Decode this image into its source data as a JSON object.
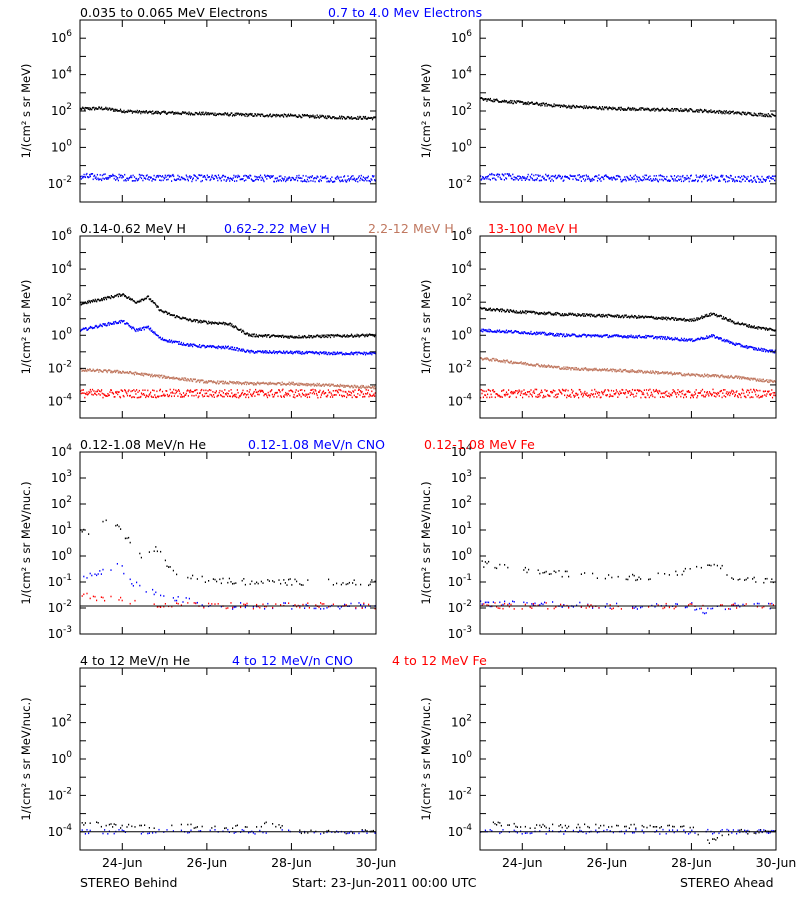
{
  "colors": {
    "black": "#000000",
    "blue": "#0000ff",
    "tan": "#c07860",
    "red": "#ff0000"
  },
  "rows": [
    {
      "titles": [
        {
          "text": "0.035 to 0.065 MeV Electrons",
          "color": "#000000"
        },
        {
          "text": "0.7 to 4.0 Mev Electrons",
          "color": "#0000ff"
        }
      ]
    },
    {
      "titles": [
        {
          "text": "0.14-0.62 MeV H",
          "color": "#000000"
        },
        {
          "text": "0.62-2.22 MeV H",
          "color": "#0000ff"
        },
        {
          "text": "2.2-12 MeV H",
          "color": "#c07860"
        },
        {
          "text": "13-100 MeV H",
          "color": "#ff0000"
        }
      ]
    },
    {
      "titles": [
        {
          "text": "0.12-1.08 MeV/n He",
          "color": "#000000"
        },
        {
          "text": "0.12-1.08 MeV/n CNO",
          "color": "#0000ff"
        },
        {
          "text": "0.12-1.08 MeV Fe",
          "color": "#ff0000"
        }
      ]
    },
    {
      "titles": [
        {
          "text": "4 to 12 MeV/n He",
          "color": "#000000"
        },
        {
          "text": "4 to 12 MeV/n CNO",
          "color": "#0000ff"
        },
        {
          "text": "4 to 12 MeV Fe",
          "color": "#ff0000"
        }
      ]
    }
  ],
  "footer": {
    "left": "STEREO Behind",
    "center": "Start: 23-Jun-2011 00:00 UTC",
    "right": "STEREO Ahead"
  },
  "chart_data": [
    {
      "type": "scatter",
      "panel": "electrons-behind",
      "ylabel": "1/(cm² s sr MeV)",
      "yscale": "log",
      "ylim": [
        0.001,
        10000000
      ],
      "ytick_labels": [
        "10^-2",
        "10^0",
        "10^2",
        "10^4",
        "10^6"
      ],
      "xlim": [
        0,
        7
      ],
      "series": [
        {
          "name": "0.035 to 0.065 MeV Electrons",
          "color": "#000000",
          "x": [
            0,
            0.5,
            1,
            1.5,
            2,
            3,
            4,
            5,
            6,
            7
          ],
          "y": [
            130,
            140,
            100,
            85,
            80,
            70,
            60,
            55,
            45,
            40
          ]
        },
        {
          "name": "0.7 to 4.0 Mev Electrons",
          "color": "#0000ff",
          "x": [
            0,
            1,
            2,
            3,
            4,
            5,
            6,
            7
          ],
          "y": [
            0.025,
            0.022,
            0.021,
            0.02,
            0.02,
            0.02,
            0.019,
            0.019
          ]
        }
      ]
    },
    {
      "type": "scatter",
      "panel": "electrons-ahead",
      "ylabel": "1/(cm² s sr MeV)",
      "yscale": "log",
      "ylim": [
        0.001,
        10000000
      ],
      "ytick_labels": [
        "10^-2",
        "10^0",
        "10^2",
        "10^4",
        "10^6"
      ],
      "xlim": [
        0,
        7
      ],
      "series": [
        {
          "name": "0.035 to 0.065 MeV Electrons",
          "color": "#000000",
          "x": [
            0,
            1,
            2,
            3,
            4,
            5,
            6,
            7
          ],
          "y": [
            450,
            280,
            180,
            140,
            120,
            110,
            80,
            55
          ]
        },
        {
          "name": "0.7 to 4.0 Mev Electrons",
          "color": "#0000ff",
          "x": [
            0,
            1,
            2,
            3,
            4,
            5,
            6,
            7
          ],
          "y": [
            0.025,
            0.022,
            0.021,
            0.02,
            0.02,
            0.02,
            0.019,
            0.018
          ]
        }
      ]
    },
    {
      "type": "scatter",
      "panel": "protons-behind",
      "ylabel": "1/(cm² s sr MeV)",
      "yscale": "log",
      "ylim": [
        1e-05,
        1000000
      ],
      "ytick_labels": [
        "10^-4",
        "10^-2",
        "10^0",
        "10^2",
        "10^4",
        "10^6"
      ],
      "xlim": [
        0,
        7
      ],
      "series": [
        {
          "name": "0.14-0.62 MeV H",
          "color": "#000000",
          "x": [
            0,
            0.5,
            1,
            1.3,
            1.6,
            1.9,
            2.2,
            2.6,
            3,
            3.5,
            4,
            5,
            6,
            7
          ],
          "y": [
            80,
            150,
            300,
            100,
            200,
            30,
            15,
            8,
            6,
            5,
            1,
            0.8,
            0.9,
            1
          ]
        },
        {
          "name": "0.62-2.22 MeV H",
          "color": "#0000ff",
          "x": [
            0,
            0.5,
            1,
            1.3,
            1.6,
            1.9,
            2.2,
            2.6,
            3,
            3.5,
            4,
            5,
            6,
            7
          ],
          "y": [
            2,
            4,
            7,
            2,
            3,
            0.6,
            0.4,
            0.25,
            0.2,
            0.18,
            0.1,
            0.09,
            0.08,
            0.08
          ]
        },
        {
          "name": "2.2-12 MeV H",
          "color": "#c07860",
          "x": [
            0,
            1,
            2,
            3,
            4,
            5,
            6,
            7
          ],
          "y": [
            0.008,
            0.006,
            0.003,
            0.0015,
            0.0012,
            0.0012,
            0.0009,
            0.0007
          ]
        },
        {
          "name": "13-100 MeV H",
          "color": "#ff0000",
          "x": [
            0,
            1,
            2,
            3,
            4,
            5,
            6,
            7
          ],
          "y": [
            0.0003,
            0.0003,
            0.0003,
            0.0003,
            0.0003,
            0.0003,
            0.0003,
            0.0003
          ]
        }
      ]
    },
    {
      "type": "scatter",
      "panel": "protons-ahead",
      "ylabel": "1/(cm² s sr MeV)",
      "yscale": "log",
      "ylim": [
        1e-05,
        1000000
      ],
      "ytick_labels": [
        "10^-4",
        "10^-2",
        "10^0",
        "10^2",
        "10^4",
        "10^6"
      ],
      "xlim": [
        0,
        7
      ],
      "series": [
        {
          "name": "0.14-0.62 MeV H",
          "color": "#000000",
          "x": [
            0,
            1,
            2,
            3,
            4,
            5,
            5.5,
            6,
            6.5,
            7
          ],
          "y": [
            40,
            25,
            18,
            15,
            12,
            8,
            20,
            6,
            3,
            2
          ]
        },
        {
          "name": "0.62-2.22 MeV H",
          "color": "#0000ff",
          "x": [
            0,
            1,
            2,
            3,
            4,
            5,
            5.5,
            6,
            6.5,
            7
          ],
          "y": [
            2,
            1.5,
            1,
            0.9,
            0.8,
            0.5,
            0.9,
            0.3,
            0.15,
            0.1
          ]
        },
        {
          "name": "2.2-12 MeV H",
          "color": "#c07860",
          "x": [
            0,
            1,
            2,
            3,
            4,
            5,
            6,
            7
          ],
          "y": [
            0.04,
            0.02,
            0.01,
            0.008,
            0.006,
            0.004,
            0.003,
            0.0015
          ]
        },
        {
          "name": "13-100 MeV H",
          "color": "#ff0000",
          "x": [
            0,
            1,
            2,
            3,
            4,
            5,
            6,
            7
          ],
          "y": [
            0.0003,
            0.0003,
            0.0003,
            0.0003,
            0.0003,
            0.0003,
            0.0003,
            0.0003
          ]
        }
      ]
    },
    {
      "type": "scatter",
      "panel": "heavy-low-behind",
      "ylabel": "1/(cm² s sr MeV/nuc.)",
      "yscale": "log",
      "ylim": [
        0.001,
        10000
      ],
      "ytick_labels": [
        "10^-3",
        "10^-2",
        "10^-1",
        "10^0",
        "10^1",
        "10^2",
        "10^3",
        "10^4"
      ],
      "xlim": [
        0,
        7
      ],
      "series": [
        {
          "name": "0.12-1.08 MeV/n He",
          "color": "#000000",
          "x": [
            0,
            0.3,
            0.6,
            0.9,
            1.2,
            1.5,
            1.8,
            2.1,
            3,
            4,
            5,
            6,
            7
          ],
          "y": [
            10,
            8,
            25,
            12,
            3,
            0.8,
            2,
            0.3,
            0.12,
            0.1,
            0.1,
            0.1,
            0.09
          ]
        },
        {
          "name": "0.12-1.08 MeV/n CNO",
          "color": "#0000ff",
          "x": [
            0,
            0.3,
            0.6,
            0.9,
            1.2,
            1.5,
            2,
            3,
            4,
            5,
            6,
            7
          ],
          "y": [
            0.15,
            0.2,
            0.3,
            0.5,
            0.1,
            0.05,
            0.03,
            0.012,
            0.012,
            0.012,
            0.012,
            0.012
          ]
        },
        {
          "name": "0.12-1.08 MeV Fe",
          "color": "#ff0000",
          "x": [
            0,
            1,
            2,
            3,
            4,
            5,
            6,
            7
          ],
          "y": [
            0.03,
            0.02,
            0.013,
            0.012,
            0.012,
            0.012,
            0.012,
            0.012
          ]
        }
      ]
    },
    {
      "type": "scatter",
      "panel": "heavy-low-ahead",
      "ylabel": "1/(cm² s sr MeV/nuc.)",
      "yscale": "log",
      "ylim": [
        0.001,
        10000
      ],
      "ytick_labels": [
        "10^-3",
        "10^-2",
        "10^-1",
        "10^0",
        "10^1",
        "10^2",
        "10^3",
        "10^4"
      ],
      "xlim": [
        0,
        7
      ],
      "series": [
        {
          "name": "0.12-1.08 MeV/n He",
          "color": "#000000",
          "x": [
            0,
            0.5,
            1,
            1.5,
            2,
            3,
            4,
            4.5,
            5,
            5.5,
            6,
            7
          ],
          "y": [
            0.5,
            0.4,
            0.3,
            0.25,
            0.2,
            0.15,
            0.15,
            0.2,
            0.3,
            0.6,
            0.15,
            0.1
          ]
        },
        {
          "name": "0.12-1.08 MeV/n CNO",
          "color": "#0000ff",
          "x": [
            0,
            1,
            2,
            3,
            4,
            5,
            5.3,
            6,
            7
          ],
          "y": [
            0.015,
            0.015,
            0.013,
            0.012,
            0.012,
            0.012,
            0.008,
            0.012,
            0.012
          ]
        },
        {
          "name": "0.12-1.08 MeV Fe",
          "color": "#ff0000",
          "x": [
            0,
            1,
            2,
            3,
            4,
            5,
            6,
            7
          ],
          "y": [
            0.012,
            0.012,
            0.012,
            0.012,
            0.012,
            0.012,
            0.012,
            0.012
          ]
        }
      ]
    },
    {
      "type": "scatter",
      "panel": "heavy-high-behind",
      "ylabel": "1/(cm² s sr MeV/nuc.)",
      "yscale": "log",
      "ylim": [
        1e-05,
        100000
      ],
      "ytick_labels": [
        "10^-4",
        "10^-2",
        "10^0",
        "10^2"
      ],
      "xlim": [
        0,
        7
      ],
      "series": [
        {
          "name": "4 to 12 MeV/n He",
          "color": "#000000",
          "x": [
            0,
            0.5,
            1,
            1.5,
            2,
            3,
            4,
            4.5,
            5,
            6,
            7
          ],
          "y": [
            0.0003,
            0.00025,
            0.0002,
            0.0002,
            0.0002,
            0.0002,
            0.0002,
            0.0003,
            0.0001,
            0.0001,
            0.0001
          ]
        },
        {
          "name": "4 to 12 MeV/n CNO",
          "color": "#0000ff",
          "x": [
            0,
            1,
            2,
            3,
            4,
            5,
            6,
            7
          ],
          "y": [
            0.0001,
            0.0001,
            0.0001,
            0.0001,
            0.0001,
            0.0001,
            0.0001,
            0.0001
          ]
        },
        {
          "name": "4 to 12 MeV Fe",
          "color": "#ff0000",
          "x": [],
          "y": []
        }
      ]
    },
    {
      "type": "scatter",
      "panel": "heavy-high-ahead",
      "ylabel": "1/(cm² s sr MeV/nuc.)",
      "yscale": "log",
      "ylim": [
        1e-05,
        100000
      ],
      "ytick_labels": [
        "10^-4",
        "10^-2",
        "10^0",
        "10^2"
      ],
      "xlim": [
        0,
        7
      ],
      "series": [
        {
          "name": "4 to 12 MeV/n He",
          "color": "#000000",
          "x": [
            0,
            0.5,
            1,
            1.5,
            2,
            3,
            4,
            5,
            5.2,
            5.4,
            6,
            7
          ],
          "y": [
            0.0003,
            0.00025,
            0.0002,
            0.0002,
            0.0002,
            0.0002,
            0.0002,
            0.0002,
            5e-05,
            3e-05,
            0.0001,
            0.0001
          ]
        },
        {
          "name": "4 to 12 MeV/n CNO",
          "color": "#0000ff",
          "x": [
            0,
            1,
            2,
            3,
            4,
            5,
            6,
            7
          ],
          "y": [
            0.0001,
            0.0001,
            0.0001,
            0.0001,
            0.0001,
            0.0001,
            0.0001,
            0.0001
          ]
        },
        {
          "name": "4 to 12 MeV Fe",
          "color": "#ff0000",
          "x": [],
          "y": []
        }
      ]
    }
  ],
  "xaxis": {
    "tick_labels": [
      "24-Jun",
      "26-Jun",
      "28-Jun",
      "30-Jun"
    ],
    "tick_values": [
      1,
      3,
      5,
      7
    ]
  }
}
